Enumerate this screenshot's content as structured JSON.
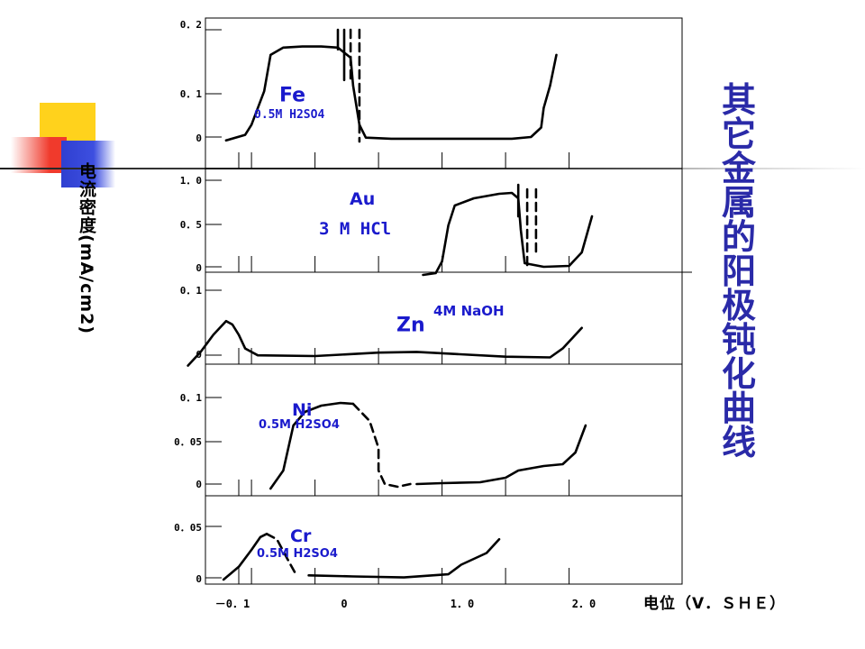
{
  "colors": {
    "curve": "#000000",
    "label_blue": "#1a1acc",
    "title_blue": "#2a2aa8",
    "deco_yellow": "#ffd21c",
    "deco_red": "#f03a2c",
    "deco_blue": "#2f3fd0"
  },
  "y_axis_title": "电流密度(mA/cm2)",
  "x_axis_title": "电位（V．ＳＨＥ）",
  "side_title": "其它金属的阳极钝化曲线",
  "x_tick_labels": [
    "－0．1",
    "0",
    "1．0",
    "2．0"
  ],
  "chart_data": [
    {
      "type": "line",
      "metal": "Fe",
      "electrolyte": "0.5M H2SO4",
      "y_ticks": [
        "0．2",
        "0．1",
        "0"
      ],
      "ylim": [
        0,
        0.2
      ],
      "xlim": [
        -0.5,
        2.75
      ],
      "series": [
        {
          "style": "solid",
          "points": [
            [
              -0.2,
              0.002
            ],
            [
              -0.05,
              0.012
            ],
            [
              0.0,
              0.03
            ],
            [
              0.1,
              0.09
            ],
            [
              0.15,
              0.155
            ],
            [
              0.25,
              0.168
            ],
            [
              0.4,
              0.17
            ],
            [
              0.55,
              0.17
            ],
            [
              0.68,
              0.168
            ],
            [
              0.78,
              0.15
            ],
            [
              0.8,
              0.1
            ],
            [
              0.85,
              0.03
            ],
            [
              0.9,
              0.007
            ],
            [
              1.1,
              0.005
            ],
            [
              2.05,
              0.005
            ],
            [
              2.2,
              0.008
            ],
            [
              2.28,
              0.025
            ],
            [
              2.3,
              0.06
            ],
            [
              2.35,
              0.1
            ],
            [
              2.4,
              0.155
            ]
          ]
        },
        {
          "style": "solid",
          "points": [
            [
              0.68,
              0.2
            ],
            [
              0.68,
              0.165
            ]
          ]
        },
        {
          "style": "solid",
          "points": [
            [
              0.73,
              0.2
            ],
            [
              0.73,
              0.11
            ]
          ]
        },
        {
          "style": "dashed",
          "points": [
            [
              0.78,
              0.2
            ],
            [
              0.78,
              0.11
            ]
          ]
        },
        {
          "style": "dashed",
          "points": [
            [
              0.85,
              0.2
            ],
            [
              0.85,
              0.0
            ]
          ]
        }
      ]
    },
    {
      "type": "line",
      "metal": "Au",
      "electrolyte": "3 M HCl",
      "y_ticks": [
        "1．0",
        "0．5",
        "0"
      ],
      "ylim": [
        0,
        1.0
      ],
      "xlim": [
        -0.5,
        2.75
      ],
      "series": [
        {
          "style": "solid",
          "points": [
            [
              1.35,
              -0.05
            ],
            [
              1.45,
              -0.03
            ],
            [
              1.5,
              0.1
            ],
            [
              1.55,
              0.5
            ],
            [
              1.6,
              0.72
            ],
            [
              1.75,
              0.8
            ],
            [
              1.95,
              0.85
            ],
            [
              2.05,
              0.86
            ],
            [
              2.1,
              0.8
            ],
            [
              2.12,
              0.45
            ],
            [
              2.15,
              0.08
            ],
            [
              2.3,
              0.04
            ],
            [
              2.5,
              0.05
            ],
            [
              2.6,
              0.2
            ],
            [
              2.68,
              0.6
            ]
          ]
        },
        {
          "style": "solid",
          "points": [
            [
              2.1,
              0.95
            ],
            [
              2.1,
              0.6
            ]
          ]
        },
        {
          "style": "dashed",
          "points": [
            [
              2.17,
              0.9
            ],
            [
              2.17,
              0.05
            ]
          ]
        },
        {
          "style": "dashed",
          "points": [
            [
              2.24,
              0.9
            ],
            [
              2.24,
              0.15
            ]
          ]
        }
      ]
    },
    {
      "type": "line",
      "metal": "Zn",
      "electrolyte": "4M NaOH",
      "y_ticks": [
        "0．1",
        "0"
      ],
      "ylim": [
        0,
        0.1
      ],
      "xlim": [
        -0.5,
        2.75
      ],
      "series": [
        {
          "style": "solid",
          "points": [
            [
              -0.5,
              -0.01
            ],
            [
              -0.4,
              0.01
            ],
            [
              -0.3,
              0.035
            ],
            [
              -0.2,
              0.055
            ],
            [
              -0.15,
              0.05
            ],
            [
              -0.1,
              0.035
            ],
            [
              -0.05,
              0.015
            ],
            [
              0.05,
              0.005
            ],
            [
              0.5,
              0.004
            ],
            [
              1.0,
              0.009
            ],
            [
              1.3,
              0.01
            ],
            [
              1.6,
              0.007
            ],
            [
              2.0,
              0.003
            ],
            [
              2.35,
              0.002
            ],
            [
              2.45,
              0.015
            ],
            [
              2.6,
              0.045
            ]
          ]
        }
      ]
    },
    {
      "type": "line",
      "metal": "Ni",
      "electrolyte": "0.5M H2SO4",
      "y_ticks": [
        "0．1",
        "0．05",
        "0"
      ],
      "ylim": [
        0,
        0.1
      ],
      "xlim": [
        -0.5,
        2.75
      ],
      "series": [
        {
          "style": "solid",
          "points": [
            [
              0.15,
              0.0
            ],
            [
              0.25,
              0.02
            ],
            [
              0.33,
              0.07
            ],
            [
              0.42,
              0.085
            ],
            [
              0.55,
              0.092
            ],
            [
              0.7,
              0.095
            ],
            [
              0.8,
              0.094
            ]
          ]
        },
        {
          "style": "dashed",
          "points": [
            [
              0.8,
              0.094
            ],
            [
              0.93,
              0.075
            ],
            [
              1.0,
              0.045
            ],
            [
              1.0,
              0.02
            ],
            [
              1.05,
              0.005
            ],
            [
              1.15,
              0.002
            ],
            [
              1.25,
              0.005
            ]
          ]
        },
        {
          "style": "solid",
          "points": [
            [
              1.3,
              0.005
            ],
            [
              1.5,
              0.006
            ],
            [
              1.8,
              0.007
            ],
            [
              2.0,
              0.012
            ],
            [
              2.1,
              0.02
            ],
            [
              2.3,
              0.025
            ],
            [
              2.45,
              0.027
            ],
            [
              2.55,
              0.04
            ],
            [
              2.63,
              0.07
            ]
          ]
        }
      ]
    },
    {
      "type": "line",
      "metal": "Cr",
      "electrolyte": "0.5M H2SO4",
      "y_ticks": [
        "0．05",
        "0"
      ],
      "ylim": [
        0,
        0.05
      ],
      "xlim": [
        -0.5,
        2.75
      ],
      "series": [
        {
          "style": "solid",
          "points": [
            [
              -0.22,
              0.0
            ],
            [
              -0.1,
              0.012
            ],
            [
              0.0,
              0.028
            ],
            [
              0.07,
              0.04
            ],
            [
              0.12,
              0.043
            ]
          ]
        },
        {
          "style": "dashed",
          "points": [
            [
              0.12,
              0.043
            ],
            [
              0.2,
              0.038
            ],
            [
              0.28,
              0.02
            ],
            [
              0.35,
              0.005
            ]
          ]
        },
        {
          "style": "solid",
          "points": [
            [
              0.45,
              0.004
            ],
            [
              0.8,
              0.003
            ],
            [
              1.2,
              0.002
            ],
            [
              1.55,
              0.005
            ],
            [
              1.65,
              0.014
            ],
            [
              1.85,
              0.025
            ],
            [
              1.95,
              0.038
            ]
          ]
        }
      ]
    }
  ]
}
